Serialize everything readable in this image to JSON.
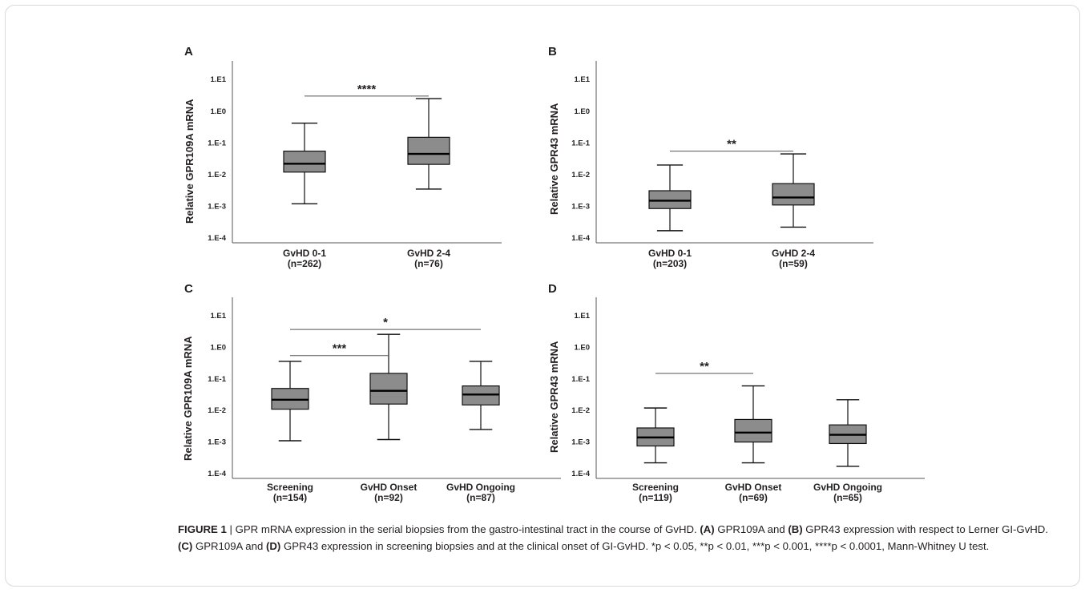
{
  "figure": {
    "caption": {
      "label": "FIGURE 1",
      "separator": " | ",
      "text": "GPR mRNA expression in the serial biopsies from the gastro-intestinal tract in the course of GvHD. (A) GPR109A and (B) GPR43 expression with respect to Lerner GI-GvHD. (C) GPR109A and (D) GPR43 expression in screening biopsies and at the clinical onset of GI-GvHD. *p < 0.05, **p < 0.01, ***p < 0.001, ****p < 0.0001, Mann-Whitney U test."
    }
  },
  "chart_data": [
    {
      "panel": "A",
      "type": "box",
      "ylabel": "Relative GPR109A mRNA",
      "yscale": "log",
      "yticks": [
        "1.E-4",
        "1.E-3",
        "1.E-2",
        "1.E-1",
        "1.E0",
        "1.E1"
      ],
      "ylim": [
        0.0001,
        10
      ],
      "categories": [
        {
          "name": "GvHD 0-1",
          "n": "(n=262)"
        },
        {
          "name": "GvHD 2-4",
          "n": "(n=76)"
        }
      ],
      "boxes": [
        {
          "min": 0.0012,
          "q1": 0.012,
          "median": 0.022,
          "q3": 0.055,
          "max": 0.42
        },
        {
          "min": 0.0035,
          "q1": 0.021,
          "median": 0.045,
          "q3": 0.15,
          "max": 2.5
        }
      ],
      "significance": [
        {
          "from": 0,
          "to": 1,
          "label": "****",
          "y": 3.0
        }
      ]
    },
    {
      "panel": "B",
      "type": "box",
      "ylabel": "Relative GPR43 mRNA",
      "yscale": "log",
      "yticks": [
        "1.E-4",
        "1.E-3",
        "1.E-2",
        "1.E-1",
        "1.E0",
        "1.E1"
      ],
      "ylim": [
        0.0001,
        10
      ],
      "categories": [
        {
          "name": "GvHD 0-1",
          "n": "(n=203)"
        },
        {
          "name": "GvHD 2-4",
          "n": "(n=59)"
        }
      ],
      "boxes": [
        {
          "min": 0.00017,
          "q1": 0.00085,
          "median": 0.0015,
          "q3": 0.0031,
          "max": 0.02
        },
        {
          "min": 0.00022,
          "q1": 0.0011,
          "median": 0.0019,
          "q3": 0.0052,
          "max": 0.045
        }
      ],
      "significance": [
        {
          "from": 0,
          "to": 1,
          "label": "**",
          "y": 0.055
        }
      ]
    },
    {
      "panel": "C",
      "type": "box",
      "ylabel": "Relative GPR109A mRNA",
      "yscale": "log",
      "yticks": [
        "1.E-4",
        "1.E-3",
        "1.E-2",
        "1.E-1",
        "1.E0",
        "1.E1"
      ],
      "ylim": [
        0.0001,
        10
      ],
      "categories": [
        {
          "name": "Screening",
          "n": "(n=154)"
        },
        {
          "name": "GvHD Onset",
          "n": "(n=92)"
        },
        {
          "name": "GvHD Ongoing",
          "n": "(n=87)"
        }
      ],
      "boxes": [
        {
          "min": 0.0011,
          "q1": 0.011,
          "median": 0.022,
          "q3": 0.05,
          "max": 0.36
        },
        {
          "min": 0.0012,
          "q1": 0.016,
          "median": 0.042,
          "q3": 0.15,
          "max": 2.6
        },
        {
          "min": 0.0025,
          "q1": 0.015,
          "median": 0.032,
          "q3": 0.06,
          "max": 0.36
        }
      ],
      "significance": [
        {
          "from": 0,
          "to": 2,
          "label": "*",
          "y": 3.7
        },
        {
          "from": 0,
          "to": 1,
          "label": "***",
          "y": 0.55
        }
      ]
    },
    {
      "panel": "D",
      "type": "box",
      "ylabel": "Relative GPR43 mRNA",
      "yscale": "log",
      "yticks": [
        "1.E-4",
        "1.E-3",
        "1.E-2",
        "1.E-1",
        "1.E0",
        "1.E1"
      ],
      "ylim": [
        0.0001,
        10
      ],
      "categories": [
        {
          "name": "Screening",
          "n": "(n=119)"
        },
        {
          "name": "GvHD Onset",
          "n": "(n=69)"
        },
        {
          "name": "GvHD Ongoing",
          "n": "(n=65)"
        }
      ],
      "boxes": [
        {
          "min": 0.00022,
          "q1": 0.00075,
          "median": 0.0014,
          "q3": 0.0028,
          "max": 0.012
        },
        {
          "min": 0.00022,
          "q1": 0.001,
          "median": 0.002,
          "q3": 0.0052,
          "max": 0.06
        },
        {
          "min": 0.00017,
          "q1": 0.0009,
          "median": 0.0017,
          "q3": 0.0035,
          "max": 0.022
        }
      ],
      "significance": [
        {
          "from": 0,
          "to": 1,
          "label": "**",
          "y": 0.15
        }
      ]
    }
  ]
}
